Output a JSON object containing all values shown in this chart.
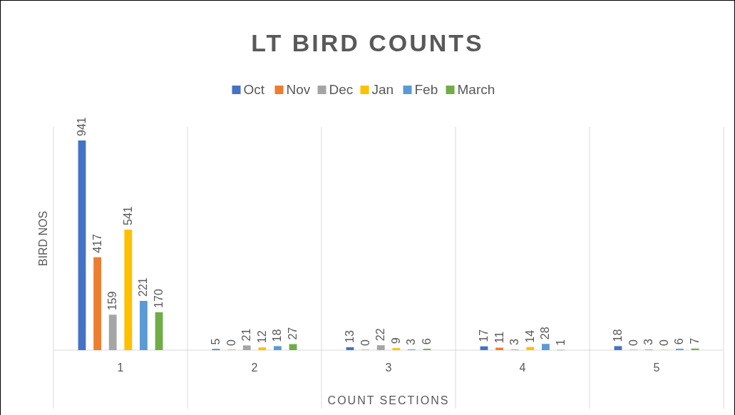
{
  "chart_data": {
    "type": "bar",
    "title": "LT BIRD COUNTS",
    "xlabel": "COUNT SECTIONS",
    "ylabel": "BIRD NOS",
    "categories": [
      "1",
      "2",
      "3",
      "4",
      "5"
    ],
    "series": [
      {
        "name": "Oct",
        "color": "#4472c4",
        "values": [
          941,
          5,
          13,
          17,
          18
        ]
      },
      {
        "name": "Nov",
        "color": "#ed7d31",
        "values": [
          417,
          0,
          0,
          11,
          0
        ]
      },
      {
        "name": "Dec",
        "color": "#a5a5a5",
        "values": [
          159,
          21,
          22,
          3,
          3
        ]
      },
      {
        "name": "Jan",
        "color": "#ffc000",
        "values": [
          541,
          12,
          9,
          14,
          0
        ]
      },
      {
        "name": "Feb",
        "color": "#5b9bd5",
        "values": [
          221,
          18,
          3,
          28,
          6
        ]
      },
      {
        "name": "March",
        "color": "#70ad47",
        "values": [
          170,
          27,
          6,
          1,
          7
        ]
      }
    ],
    "data_labels": true,
    "grid": "x",
    "legend": "top"
  }
}
